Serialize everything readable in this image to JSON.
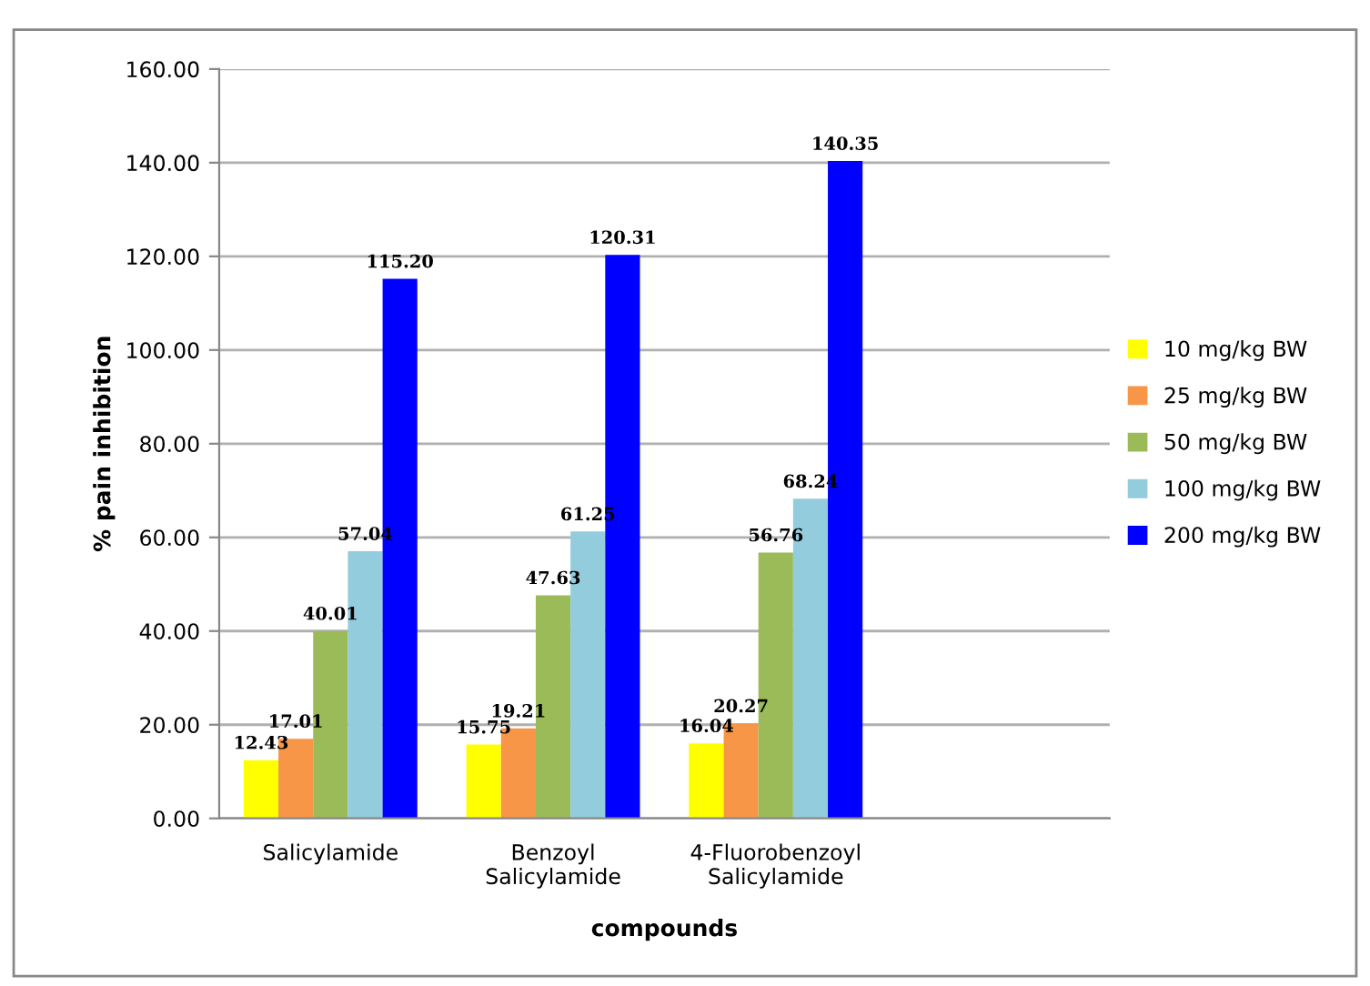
{
  "chart_data": {
    "type": "bar",
    "xlabel": "compounds",
    "ylabel": "% pain inhibition",
    "categories": [
      "Salicylamide",
      "Benzoyl\nSalicylamide",
      "4-Fluorobenzoyl\nSalicylamide",
      null
    ],
    "series": [
      {
        "name": "10 mg/kg BW",
        "color": "#ffff00",
        "values": [
          12.43,
          15.75,
          16.04,
          null
        ]
      },
      {
        "name": "25 mg/kg BW",
        "color": "#f79646",
        "values": [
          17.01,
          19.21,
          20.27,
          null
        ]
      },
      {
        "name": "50 mg/kg BW",
        "color": "#9bbb59",
        "values": [
          40.01,
          47.63,
          56.76,
          null
        ]
      },
      {
        "name": "100 mg/kg BW",
        "color": "#93cddd",
        "values": [
          57.04,
          61.25,
          68.24,
          null
        ]
      },
      {
        "name": "200 mg/kg BW",
        "color": "#0000ff",
        "values": [
          115.2,
          120.31,
          140.35,
          null
        ],
        "value_labels": [
          "115.20",
          "120.31",
          "140.35",
          null
        ]
      }
    ],
    "ylim": [
      0,
      160
    ],
    "yticks": [
      {
        "value": 0,
        "label": "0.00"
      },
      {
        "value": 20,
        "label": "20.00"
      },
      {
        "value": 40,
        "label": "40.00"
      },
      {
        "value": 60,
        "label": "60.00"
      },
      {
        "value": 80,
        "label": "80.00"
      },
      {
        "value": 100,
        "label": "100.00"
      },
      {
        "value": 120,
        "label": "120.00"
      },
      {
        "value": 140,
        "label": "140.00"
      },
      {
        "value": 160,
        "label": "160.00"
      }
    ],
    "grid": "y",
    "legend": "right",
    "data_labels": true
  }
}
